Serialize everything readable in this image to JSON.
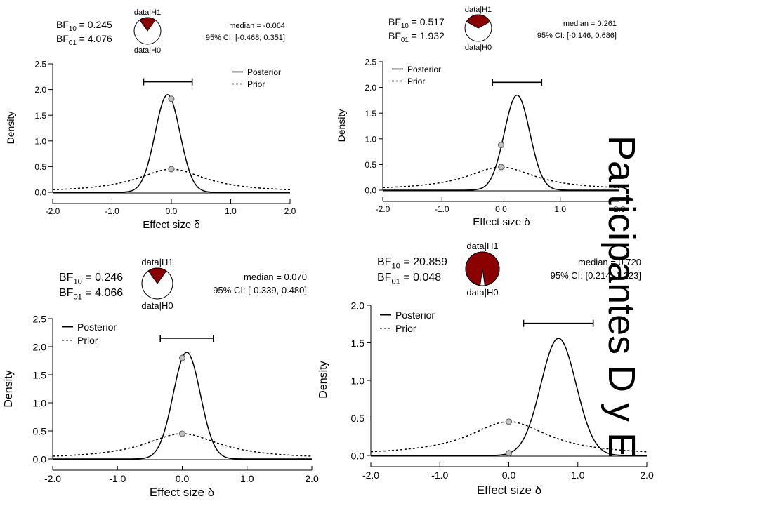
{
  "side_title": "Participantes D y E",
  "colors": {
    "h1_fill": "#8b0000",
    "h0_fill": "#ffffff",
    "point_fill": "#c0c0c0",
    "line": "#000000"
  },
  "pie_labels": {
    "top": "data|H1",
    "bottom": "data|H0"
  },
  "chart_data": [
    {
      "type": "line",
      "bf10_value": "0.245",
      "bf01_value": "4.076",
      "median_text": "median = -0.064",
      "ci_text": "95% CI: [-0.468, 0.351]",
      "pie_h1_fraction": 0.197,
      "xlabel": "Effect size",
      "ylabel": "Density",
      "xlim": [
        -2.0,
        2.0
      ],
      "ylim": [
        0,
        2.5
      ],
      "xticks": [
        "-2.0",
        "-1.0",
        "0.0",
        "1.0",
        "2.0"
      ],
      "yticks": [
        "0.0",
        "0.5",
        "1.0",
        "1.5",
        "2.0",
        "2.5"
      ],
      "posterior": {
        "mode": -0.064,
        "peak": 1.9
      },
      "prior_peak": 0.45,
      "ci": [
        -0.468,
        0.351
      ],
      "points": [
        {
          "x": 0.0,
          "y": 1.82
        },
        {
          "x": 0.0,
          "y": 0.45
        }
      ],
      "legend": {
        "posterior": "Posterior",
        "prior": "Prior"
      }
    },
    {
      "type": "line",
      "bf10_value": "0.517",
      "bf01_value": "1.932",
      "median_text": "median = 0.261",
      "ci_text": "95% CI: [-0.146, 0.686]",
      "pie_h1_fraction": 0.341,
      "xlabel": "Effect size",
      "ylabel": "Density",
      "xlim": [
        -2.0,
        2.0
      ],
      "ylim": [
        0,
        2.5
      ],
      "xticks": [
        "-2.0",
        "-1.0",
        "0.0",
        "1.0",
        "2.0"
      ],
      "yticks": [
        "0.0",
        "0.5",
        "1.0",
        "1.5",
        "2.0",
        "2.5"
      ],
      "posterior": {
        "mode": 0.27,
        "peak": 1.85
      },
      "prior_peak": 0.45,
      "ci": [
        -0.146,
        0.686
      ],
      "points": [
        {
          "x": 0.0,
          "y": 0.88
        },
        {
          "x": 0.0,
          "y": 0.45
        }
      ],
      "legend": {
        "posterior": "Posterior",
        "prior": "Prior"
      }
    },
    {
      "type": "line",
      "bf10_value": "0.246",
      "bf01_value": "4.066",
      "median_text": "median = 0.070",
      "ci_text": "95% CI: [-0.339, 0.480]",
      "pie_h1_fraction": 0.197,
      "xlabel": "Effect size",
      "ylabel": "Density",
      "xlim": [
        -2.0,
        2.0
      ],
      "ylim": [
        0,
        2.5
      ],
      "xticks": [
        "-2.0",
        "-1.0",
        "0.0",
        "1.0",
        "2.0"
      ],
      "yticks": [
        "0.0",
        "0.5",
        "1.0",
        "1.5",
        "2.0",
        "2.5"
      ],
      "posterior": {
        "mode": 0.07,
        "peak": 1.9
      },
      "prior_peak": 0.45,
      "ci": [
        -0.339,
        0.48
      ],
      "points": [
        {
          "x": 0.0,
          "y": 1.8
        },
        {
          "x": 0.0,
          "y": 0.45
        }
      ],
      "legend": {
        "posterior": "Posterior",
        "prior": "Prior"
      }
    },
    {
      "type": "line",
      "bf10_value": "20.859",
      "bf01_value": "0.048",
      "median_text": "median = 0.720",
      "ci_text": "95% CI: [0.214, 1.223]",
      "pie_h1_fraction": 0.954,
      "xlabel": "Effect size",
      "ylabel": "Density",
      "xlim": [
        -2.0,
        2.0
      ],
      "ylim": [
        0,
        2.0
      ],
      "xticks": [
        "-2.0",
        "-1.0",
        "0.0",
        "1.0",
        "2.0"
      ],
      "yticks": [
        "0.0",
        "0.5",
        "1.0",
        "1.5",
        "2.0"
      ],
      "posterior": {
        "mode": 0.72,
        "peak": 1.56
      },
      "prior_peak": 0.45,
      "ci": [
        0.214,
        1.223
      ],
      "points": [
        {
          "x": 0.0,
          "y": 0.45
        },
        {
          "x": 0.0,
          "y": 0.03
        }
      ],
      "legend": {
        "posterior": "Posterior",
        "prior": "Prior"
      }
    }
  ]
}
